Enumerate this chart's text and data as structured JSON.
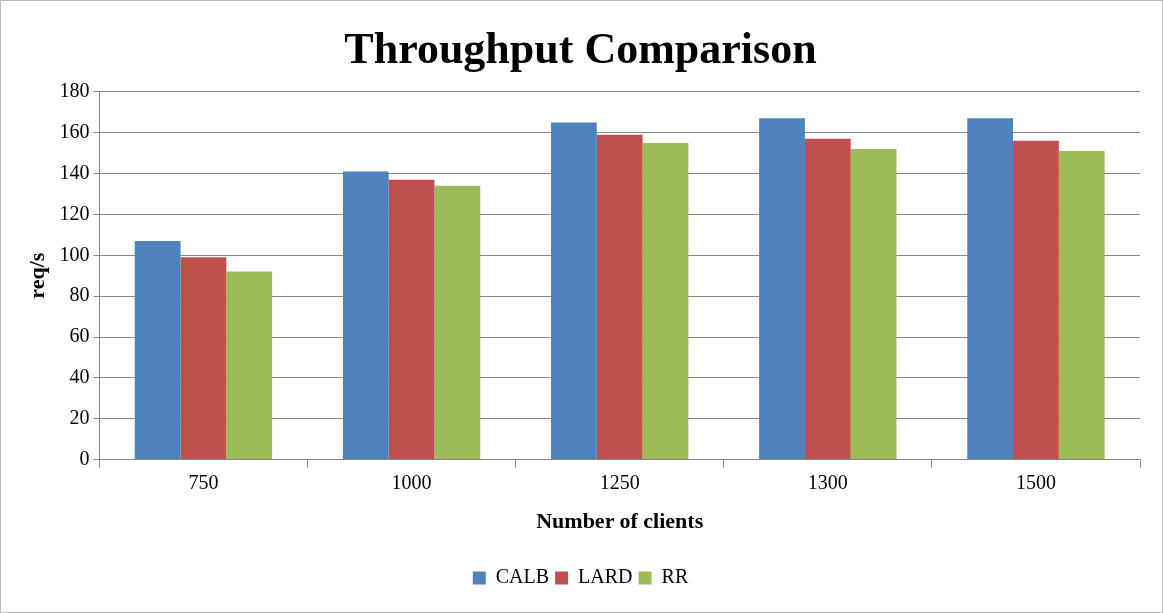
{
  "chart_data": {
    "type": "bar",
    "title": "Throughput Comparison",
    "xlabel": "Number of clients",
    "ylabel": "req/s",
    "categories": [
      "750",
      "1000",
      "1250",
      "1300",
      "1500"
    ],
    "series": [
      {
        "name": "CALB",
        "color": "#4f81bd",
        "values": [
          107,
          141,
          165,
          167,
          167
        ]
      },
      {
        "name": "LARD",
        "color": "#c0504d",
        "values": [
          99,
          137,
          159,
          157,
          156
        ]
      },
      {
        "name": "RR",
        "color": "#9bbb59",
        "values": [
          92,
          134,
          155,
          152,
          151
        ]
      }
    ],
    "ylim": [
      0,
      180
    ],
    "yticks": [
      0,
      20,
      40,
      60,
      80,
      100,
      120,
      140,
      160,
      180
    ],
    "grid": "y",
    "legend": "bottom"
  }
}
